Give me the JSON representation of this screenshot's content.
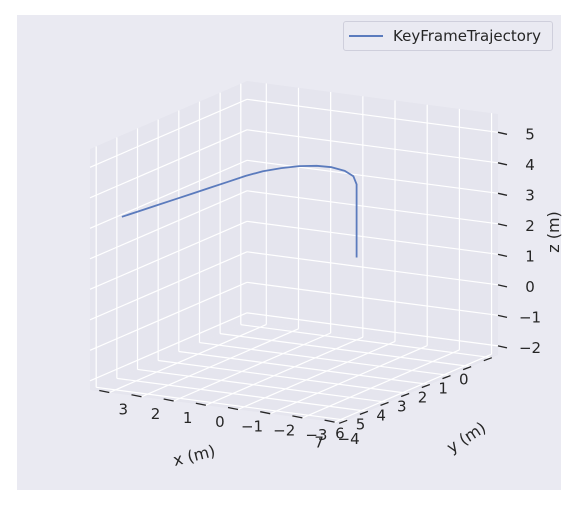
{
  "chart_data": {
    "type": "line",
    "projection": "3d",
    "xlabel": "x (m)",
    "ylabel": "y (m)",
    "zlabel": "z (m)",
    "xlim": [
      -0.3,
      7.3
    ],
    "ylim": [
      -4.2,
      3.6
    ],
    "zlim": [
      -2.3,
      5.6
    ],
    "x_ticks": [
      "0",
      "1",
      "2",
      "3",
      "4",
      "5",
      "6",
      "7"
    ],
    "y_ticks": [
      "−4",
      "−3",
      "−2",
      "−1",
      "0",
      "1",
      "2",
      "3"
    ],
    "z_ticks": [
      "−2",
      "−1",
      "0",
      "1",
      "2",
      "3",
      "4",
      "5"
    ],
    "grid": true,
    "legend_position": "top-right",
    "series": [
      {
        "name": "KeyFrameTrajectory",
        "color": "#5b7bbd",
        "x": [
          0.0,
          0.0,
          0.0,
          0.0,
          0.0,
          0.0,
          0.0,
          0.0,
          0.03,
          0.12,
          0.3,
          0.6,
          1.0,
          1.5,
          2.1,
          2.8,
          3.5,
          4.2,
          4.9,
          5.6,
          6.3,
          7.0
        ],
        "y": [
          0.0,
          0.0,
          0.0,
          0.0,
          0.0,
          0.0,
          0.0,
          0.1,
          0.35,
          0.7,
          1.05,
          1.4,
          1.7,
          1.95,
          2.1,
          2.2,
          2.3,
          2.4,
          2.5,
          2.6,
          2.7,
          2.8
        ],
        "z": [
          0.4,
          0.8,
          1.2,
          1.6,
          2.0,
          2.4,
          2.8,
          3.05,
          3.2,
          3.3,
          3.35,
          3.38,
          3.39,
          3.4,
          3.4,
          3.4,
          3.4,
          3.4,
          3.4,
          3.4,
          3.4,
          3.4
        ]
      }
    ]
  },
  "colors": {
    "figure_background": "#eaeaf2",
    "pane_background": "#e5e5ee",
    "grid": "#ffffff",
    "text": "#262626",
    "series": "#5b7bbd"
  }
}
